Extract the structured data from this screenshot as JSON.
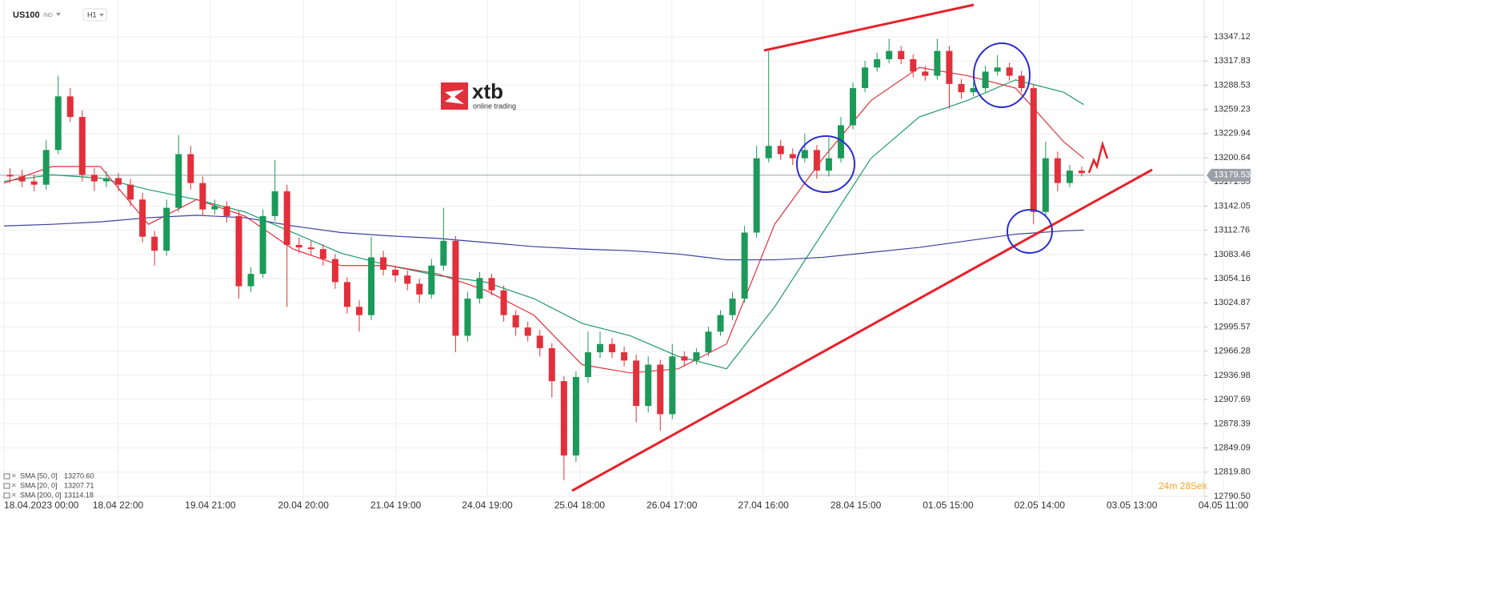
{
  "chart_data": {
    "type": "candlestick",
    "symbol": "US100",
    "badge": "IND",
    "timeframe": "H1",
    "timer": "24m 28Sek",
    "current_price": 13179.53,
    "up_color": "#1b9a59",
    "down_color": "#e1303b",
    "grid": true,
    "xlim": [
      -1,
      299
    ],
    "ylim": [
      12785.65,
      13391.73
    ],
    "xticks": [
      {
        "value": 0,
        "label": "18.04.2023  00:00"
      },
      {
        "value": 28.4,
        "label": "18.04  22:00"
      },
      {
        "value": 51.4,
        "label": "19.04  21:00"
      },
      {
        "value": 74.6,
        "label": "20.04  20:00"
      },
      {
        "value": 97.6,
        "label": "21.04  19:00"
      },
      {
        "value": 120.4,
        "label": "24.04  19:00"
      },
      {
        "value": 143.4,
        "label": "25.04  18:00"
      },
      {
        "value": 166.4,
        "label": "26.04  17:00"
      },
      {
        "value": 189.2,
        "label": "27.04  16:00"
      },
      {
        "value": 212.2,
        "label": "28.04  15:00"
      },
      {
        "value": 235.2,
        "label": "01.05  15:00"
      },
      {
        "value": 258,
        "label": "02.05  14:00"
      },
      {
        "value": 281,
        "label": "03.05  13:00"
      },
      {
        "value": 303.8,
        "label": "04.05  11:00"
      }
    ],
    "yticks": [
      13347.12,
      13317.83,
      13288.53,
      13259.23,
      13229.94,
      13200.64,
      13171.35,
      13142.05,
      13112.76,
      13083.46,
      13054.16,
      13024.87,
      12995.57,
      12966.28,
      12936.98,
      12907.69,
      12878.39,
      12849.09,
      {
        "value": 12819.8,
        "label": "12819.80"
      },
      {
        "value": 12790.5,
        "label": "12790.50"
      }
    ],
    "x": [
      1.5,
      4.5,
      7.5,
      10.5,
      13.5,
      16.5,
      19.5,
      22.5,
      25.5,
      28.5,
      31.5,
      34.5,
      37.5,
      40.5,
      43.5,
      46.5,
      49.5,
      52.5,
      55.5,
      58.5,
      61.5,
      64.5,
      67.5,
      70.5,
      73.5,
      76.5,
      79.5,
      82.5,
      85.5,
      88.5,
      91.5,
      94.5,
      97.5,
      100.5,
      103.5,
      106.5,
      109.5,
      112.5,
      115.5,
      118.5,
      121.5,
      124.5,
      127.5,
      130.5,
      133.5,
      136.5,
      139.5,
      142.5,
      145.5,
      148.5,
      151.5,
      154.5,
      157.5,
      160.5,
      163.5,
      166.5,
      169.5,
      172.5,
      175.5,
      178.5,
      181.5,
      184.5,
      187.5,
      190.5,
      193.5,
      196.5,
      199.5,
      202.5,
      205.5,
      208.5,
      211.5,
      214.5,
      217.5,
      220.5,
      223.5,
      226.5,
      229.5,
      232.5,
      235.5,
      238.5,
      241.5,
      244.5,
      247.5,
      250.5,
      253.5,
      256.5,
      259.5,
      262.5,
      265.5,
      268.5
    ],
    "open": [
      13180,
      13178,
      13172,
      13168,
      13210,
      13275,
      13250,
      13180,
      13172,
      13176,
      13168,
      13150,
      13105,
      13088,
      13140,
      13205,
      13170,
      13138,
      13142,
      13130,
      13045,
      13060,
      13130,
      13160,
      13095,
      13092,
      13090,
      13078,
      13050,
      13020,
      13010,
      13080,
      13065,
      13058,
      13048,
      13035,
      13070,
      13100,
      12985,
      13030,
      13055,
      13040,
      13010,
      12995,
      12985,
      12970,
      12930,
      12840,
      12935,
      12965,
      12975,
      12965,
      12955,
      12900,
      12950,
      12890,
      12960,
      12955,
      12965,
      12990,
      13010,
      13030,
      13110,
      13200,
      13215,
      13205,
      13200,
      13210,
      13185,
      13200,
      13240,
      13285,
      13310,
      13320,
      13330,
      13320,
      13305,
      13300,
      13330,
      13290,
      13280,
      13285,
      13305,
      13310,
      13300,
      13285,
      13135,
      13200,
      13170,
      13185
    ],
    "high": [
      13188,
      13186,
      13180,
      13222,
      13300,
      13285,
      13258,
      13188,
      13184,
      13182,
      13175,
      13158,
      13112,
      13150,
      13228,
      13215,
      13178,
      13150,
      13148,
      13136,
      13068,
      13138,
      13198,
      13168,
      13104,
      13100,
      13096,
      13084,
      13056,
      13028,
      13105,
      13088,
      13070,
      13064,
      13054,
      13078,
      13140,
      13106,
      13038,
      13062,
      13060,
      13046,
      13016,
      13002,
      12992,
      12976,
      12936,
      12942,
      12990,
      12990,
      12982,
      12972,
      12962,
      12960,
      12956,
      12975,
      12966,
      12970,
      12996,
      13016,
      13038,
      13118,
      13215,
      13330,
      13222,
      13212,
      13230,
      13216,
      13225,
      13250,
      13292,
      13318,
      13328,
      13345,
      13336,
      13326,
      13312,
      13345,
      13336,
      13296,
      13292,
      13312,
      13325,
      13316,
      13306,
      13290,
      13220,
      13208,
      13192,
      13190
    ],
    "low": [
      13170,
      13165,
      13160,
      13162,
      13205,
      13244,
      13172,
      13160,
      13165,
      13160,
      13142,
      13098,
      13070,
      13082,
      13135,
      13162,
      13130,
      13132,
      13122,
      13030,
      13038,
      13055,
      13124,
      13020,
      13085,
      13082,
      13070,
      13042,
      13012,
      12990,
      13004,
      13058,
      13050,
      13040,
      13025,
      13030,
      13064,
      12965,
      12978,
      13024,
      13034,
      13002,
      12985,
      12978,
      12960,
      12910,
      12810,
      12832,
      12928,
      12958,
      12958,
      12948,
      12880,
      12892,
      12870,
      12884,
      12948,
      12950,
      12960,
      12985,
      13004,
      13025,
      13104,
      13195,
      13198,
      13192,
      13195,
      13175,
      13178,
      13195,
      13235,
      13280,
      13305,
      13315,
      13314,
      13298,
      13294,
      13295,
      13260,
      13272,
      13275,
      13280,
      13300,
      13294,
      13280,
      13120,
      13130,
      13160,
      13165,
      13178
    ],
    "close": [
      13178,
      13172,
      13168,
      13210,
      13275,
      13250,
      13180,
      13172,
      13176,
      13168,
      13150,
      13105,
      13088,
      13140,
      13205,
      13170,
      13138,
      13142,
      13130,
      13045,
      13060,
      13130,
      13160,
      13095,
      13092,
      13090,
      13078,
      13050,
      13020,
      13010,
      13080,
      13065,
      13058,
      13048,
      13035,
      13070,
      13100,
      12985,
      13030,
      13055,
      13040,
      13010,
      12995,
      12985,
      12970,
      12930,
      12840,
      12935,
      12965,
      12975,
      12965,
      12955,
      12900,
      12950,
      12890,
      12960,
      12955,
      12965,
      12990,
      13010,
      13030,
      13110,
      13200,
      13215,
      13205,
      13200,
      13210,
      13185,
      13200,
      13240,
      13285,
      13310,
      13320,
      13330,
      13320,
      13305,
      13300,
      13330,
      13290,
      13280,
      13285,
      13305,
      13310,
      13300,
      13285,
      13135,
      13200,
      13170,
      13185,
      13182
    ],
    "series": [
      {
        "name": "SMA [50, 0]",
        "legend_value": "13270.60",
        "color": "#1e9a6a",
        "x": [
          0,
          12,
          24,
          36,
          48,
          60,
          72,
          84,
          96,
          108,
          120,
          132,
          144,
          156,
          168,
          180,
          192,
          204,
          216,
          228,
          240,
          252,
          264,
          269
        ],
        "values": [
          13172,
          13180,
          13176,
          13162,
          13150,
          13135,
          13110,
          13085,
          13070,
          13058,
          13050,
          13030,
          13000,
          12985,
          12960,
          12945,
          13020,
          13110,
          13200,
          13250,
          13270,
          13295,
          13280,
          13265
        ]
      },
      {
        "name": "SMA [20, 0]",
        "legend_value": "13207.71",
        "color": "#e1303b",
        "x": [
          0,
          12,
          24,
          36,
          48,
          60,
          72,
          84,
          96,
          108,
          120,
          132,
          144,
          156,
          168,
          180,
          192,
          204,
          216,
          228,
          240,
          252,
          264,
          269
        ],
        "values": [
          13170,
          13190,
          13190,
          13120,
          13150,
          13130,
          13090,
          13070,
          13070,
          13060,
          13040,
          13010,
          12950,
          12940,
          12945,
          12975,
          13120,
          13200,
          13270,
          13310,
          13300,
          13285,
          13220,
          13200
        ]
      },
      {
        "name": "SMA [200, 0]",
        "legend_value": "13114.18",
        "color": "#3b3fa0",
        "x": [
          0,
          12,
          24,
          36,
          48,
          60,
          72,
          84,
          96,
          108,
          120,
          132,
          144,
          156,
          168,
          180,
          192,
          204,
          216,
          228,
          240,
          252,
          264,
          269
        ],
        "values": [
          13118,
          13120,
          13123,
          13128,
          13131,
          13128,
          13118,
          13110,
          13106,
          13103,
          13098,
          13093,
          13090,
          13088,
          13084,
          13077,
          13077,
          13080,
          13086,
          13092,
          13100,
          13108,
          13112,
          13113
        ]
      }
    ],
    "logo": {
      "name": "xtb",
      "tagline": "online trading"
    }
  }
}
